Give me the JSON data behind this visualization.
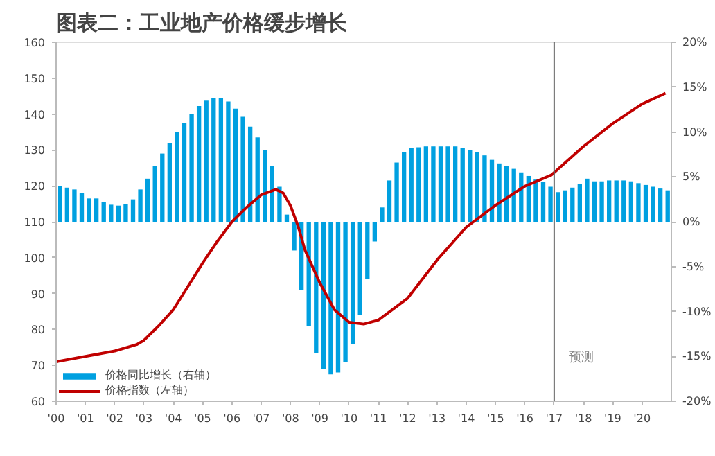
{
  "chart_data": {
    "type": "bar",
    "title": "图表二：工业地产价格缓步增长",
    "x": [
      2000.125,
      2000.375,
      2000.625,
      2000.875,
      2001.125,
      2001.375,
      2001.625,
      2001.875,
      2002.125,
      2002.375,
      2002.625,
      2002.875,
      2003.125,
      2003.375,
      2003.625,
      2003.875,
      2004.125,
      2004.375,
      2004.625,
      2004.875,
      2005.125,
      2005.375,
      2005.625,
      2005.875,
      2006.125,
      2006.375,
      2006.625,
      2006.875,
      2007.125,
      2007.375,
      2007.625,
      2007.875,
      2008.125,
      2008.375,
      2008.625,
      2008.875,
      2009.125,
      2009.375,
      2009.625,
      2009.875,
      2010.125,
      2010.375,
      2010.625,
      2010.875,
      2011.125,
      2011.375,
      2011.625,
      2011.875,
      2012.125,
      2012.375,
      2012.625,
      2012.875,
      2013.125,
      2013.375,
      2013.625,
      2013.875,
      2014.125,
      2014.375,
      2014.625,
      2014.875,
      2015.125,
      2015.375,
      2015.625,
      2015.875,
      2016.125,
      2016.375,
      2016.625,
      2016.875,
      2017.125,
      2017.375,
      2017.625,
      2017.875,
      2018.125,
      2018.375,
      2018.625,
      2018.875,
      2019.125,
      2019.375,
      2019.625,
      2019.875,
      2020.125,
      2020.375,
      2020.625,
      2020.875
    ],
    "series": [
      {
        "name": "价格同比增长（右轴）",
        "axis": "y2",
        "color": "#00a0e0",
        "values": [
          4.0,
          3.8,
          3.6,
          3.2,
          2.6,
          2.6,
          2.2,
          1.9,
          1.8,
          2.0,
          2.5,
          3.6,
          4.8,
          6.2,
          7.6,
          8.8,
          10.0,
          11.0,
          12.0,
          12.9,
          13.5,
          13.8,
          13.8,
          13.4,
          12.6,
          11.7,
          10.6,
          9.4,
          8.0,
          6.2,
          3.9,
          0.8,
          -3.2,
          -7.6,
          -11.6,
          -14.6,
          -16.4,
          -17.0,
          -16.8,
          -15.6,
          -13.6,
          -10.4,
          -6.4,
          -2.2,
          1.6,
          4.6,
          6.6,
          7.8,
          8.2,
          8.3,
          8.4,
          8.4,
          8.4,
          8.4,
          8.4,
          8.2,
          8.0,
          7.8,
          7.4,
          6.9,
          6.5,
          6.2,
          5.9,
          5.5,
          5.1,
          4.7,
          4.4,
          3.9,
          3.3,
          3.5,
          3.8,
          4.2,
          4.8,
          4.5,
          4.5,
          4.6,
          4.6,
          4.6,
          4.5,
          4.3,
          4.1,
          3.9,
          3.7,
          3.5
        ]
      },
      {
        "name": "价格指数（左轴）",
        "type": "line",
        "color": "#c00000",
        "x": [
          2000.0,
          2001.0,
          2002.0,
          2002.75,
          2003.0,
          2003.5,
          2004.0,
          2004.5,
          2005.0,
          2005.5,
          2006.0,
          2006.5,
          2007.0,
          2007.5,
          2007.75,
          2008.0,
          2008.25,
          2008.5,
          2009.0,
          2009.5,
          2010.0,
          2010.5,
          2011.0,
          2012.0,
          2013.0,
          2014.0,
          2015.0,
          2016.0,
          2016.9,
          2018.0,
          2019.0,
          2020.0,
          2020.8
        ],
        "values": [
          71,
          72.5,
          74,
          75.8,
          77,
          81,
          85.5,
          92,
          98.5,
          104.5,
          110,
          114,
          117.5,
          119,
          118,
          114.5,
          109,
          102,
          93,
          85.5,
          82,
          81.5,
          82.6,
          88.7,
          99.3,
          108.5,
          114.6,
          119.9,
          123,
          131,
          137.4,
          142.8,
          145.8
        ]
      }
    ],
    "xlim": [
      2000,
      2021
    ],
    "xticks": [
      {
        "value": 2000,
        "label": "'00"
      },
      {
        "value": 2001,
        "label": "'01"
      },
      {
        "value": 2002,
        "label": "'02"
      },
      {
        "value": 2003,
        "label": "'03"
      },
      {
        "value": 2004,
        "label": "'04"
      },
      {
        "value": 2005,
        "label": "'05"
      },
      {
        "value": 2006,
        "label": "'06"
      },
      {
        "value": 2007,
        "label": "'07"
      },
      {
        "value": 2008,
        "label": "'08"
      },
      {
        "value": 2009,
        "label": "'09"
      },
      {
        "value": 2010,
        "label": "'10"
      },
      {
        "value": 2011,
        "label": "'11"
      },
      {
        "value": 2012,
        "label": "'12"
      },
      {
        "value": 2013,
        "label": "'13"
      },
      {
        "value": 2014,
        "label": "'14"
      },
      {
        "value": 2015,
        "label": "'15"
      },
      {
        "value": 2016,
        "label": "'16"
      },
      {
        "value": 2017,
        "label": "'17"
      },
      {
        "value": 2018,
        "label": "'18"
      },
      {
        "value": 2019,
        "label": "'19"
      },
      {
        "value": 2020,
        "label": "'20"
      }
    ],
    "ylim": [
      60,
      160
    ],
    "yticks": [
      60,
      70,
      80,
      90,
      100,
      110,
      120,
      130,
      140,
      150,
      160
    ],
    "y2lim": [
      -20,
      20
    ],
    "y2ticks": [
      {
        "value": -20,
        "label": "-20%"
      },
      {
        "value": -15,
        "label": "-15%"
      },
      {
        "value": -10,
        "label": "-10%"
      },
      {
        "value": -5,
        "label": "-5%"
      },
      {
        "value": 0,
        "label": "0%"
      },
      {
        "value": 5,
        "label": "5%"
      },
      {
        "value": 10,
        "label": "10%"
      },
      {
        "value": 15,
        "label": "15%"
      },
      {
        "value": 20,
        "label": "20%"
      }
    ],
    "ref_lines": [
      {
        "axis": "x",
        "value": 2017,
        "label": "预测",
        "color": "#666666"
      }
    ],
    "legend": "bottom left",
    "grid": false
  }
}
